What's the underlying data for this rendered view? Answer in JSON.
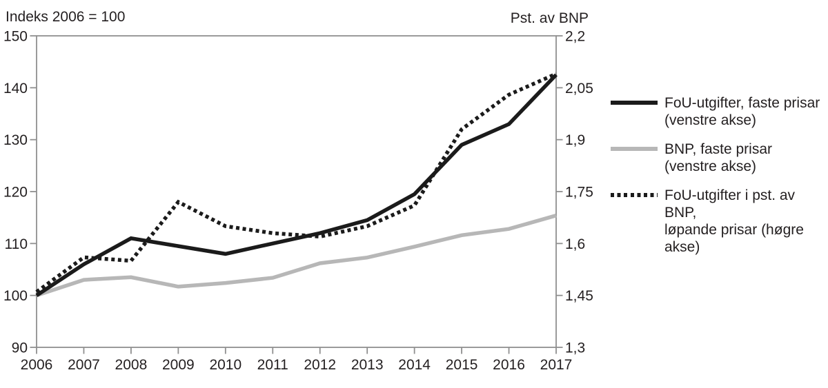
{
  "header": {
    "left_axis_title": "Indeks 2006 = 100",
    "right_axis_title": "Pst. av BNP"
  },
  "colors": {
    "dark_line": "#1b1b1b",
    "gray_line": "#b7b7b7",
    "axis": "#8f8f8f",
    "text": "#231f20"
  },
  "chart_data": {
    "type": "line",
    "title": "",
    "x": [
      "2006",
      "2007",
      "2008",
      "2009",
      "2010",
      "2011",
      "2012",
      "2013",
      "2014",
      "2015",
      "2016",
      "2017"
    ],
    "left_axis": {
      "title": "Indeks 2006 = 100",
      "min": 90,
      "max": 150,
      "tick_values": [
        90,
        100,
        110,
        120,
        130,
        140,
        150
      ],
      "tick_labels": [
        "90",
        "100",
        "110",
        "120",
        "130",
        "140",
        "150"
      ]
    },
    "right_axis": {
      "title": "Pst. av BNP",
      "min": 1.3,
      "max": 2.2,
      "tick_values": [
        1.3,
        1.45,
        1.6,
        1.75,
        1.9,
        2.05,
        2.2
      ],
      "tick_labels": [
        "1,3",
        "1,45",
        "1,6",
        "1,75",
        "1,9",
        "2,05",
        "2,2"
      ]
    },
    "grid": false,
    "legend_position": "right",
    "series": [
      {
        "name": "FoU-utgifter, faste prisar (venstre akse)",
        "legend_lines": [
          "FoU-utgifter, faste prisar",
          "(venstre akse)"
        ],
        "axis": "left",
        "line_style": "solid",
        "color": "#1b1b1b",
        "values": [
          100,
          106,
          111,
          109.5,
          108,
          110,
          112,
          114.5,
          119.5,
          129,
          133,
          142.5
        ]
      },
      {
        "name": "BNP, faste prisar (venstre akse)",
        "legend_lines": [
          "BNP, faste prisar",
          "(venstre akse)"
        ],
        "axis": "left",
        "line_style": "solid",
        "color": "#b7b7b7",
        "values": [
          100,
          103,
          103.5,
          101.7,
          102.4,
          103.4,
          106.2,
          107.3,
          109.4,
          111.6,
          112.8,
          115.4
        ]
      },
      {
        "name": "FoU-utgifter i pst. av BNP, løpande prisar (høgre akse)",
        "legend_lines": [
          "FoU-utgifter i pst. av BNP,",
          "løpande prisar (høgre akse)"
        ],
        "axis": "right",
        "line_style": "dotted",
        "color": "#1b1b1b",
        "values": [
          1.46,
          1.56,
          1.55,
          1.72,
          1.65,
          1.63,
          1.62,
          1.65,
          1.71,
          1.93,
          2.03,
          2.09
        ]
      }
    ]
  }
}
